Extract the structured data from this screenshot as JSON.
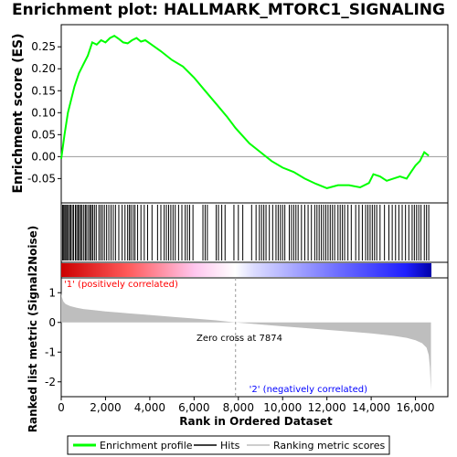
{
  "title": "Enrichment plot: HALLMARK_MTORC1_SIGNALING",
  "colors": {
    "enrichment_line": "#00ff00",
    "hits": "#000000",
    "metric_fill": "#bebebe",
    "positive_label": "#ff0000",
    "negative_label": "#0000ff",
    "zero_cross_line": "#9a9a9a"
  },
  "legend": {
    "enrichment": "Enrichment profile",
    "hits": "Hits",
    "ranking": "Ranking metric scores"
  },
  "chart_data": [
    {
      "type": "line",
      "name": "enrichment-profile",
      "ylabel": "Enrichment score (ES)",
      "xlim": [
        0,
        17500
      ],
      "ylim": [
        -0.095,
        0.29
      ],
      "yticks": [
        "0.25",
        "0.20",
        "0.15",
        "0.10",
        "0.05",
        "0.00",
        "-0.05"
      ],
      "grid": false,
      "x": [
        0,
        150,
        300,
        450,
        600,
        800,
        1000,
        1200,
        1400,
        1600,
        1800,
        2000,
        2200,
        2400,
        2600,
        2800,
        3000,
        3200,
        3400,
        3600,
        3800,
        4000,
        4500,
        5000,
        5500,
        6000,
        6500,
        7000,
        7500,
        7874,
        8500,
        9000,
        9500,
        10000,
        10500,
        11000,
        11500,
        12000,
        12500,
        13000,
        13500,
        13900,
        14100,
        14400,
        14700,
        15000,
        15300,
        15600,
        15800,
        16000,
        16200,
        16400,
        16600
      ],
      "y": [
        -0.005,
        0.05,
        0.1,
        0.13,
        0.16,
        0.19,
        0.21,
        0.23,
        0.26,
        0.255,
        0.265,
        0.26,
        0.27,
        0.275,
        0.268,
        0.26,
        0.258,
        0.265,
        0.27,
        0.262,
        0.265,
        0.258,
        0.24,
        0.22,
        0.205,
        0.18,
        0.15,
        0.12,
        0.09,
        0.065,
        0.03,
        0.01,
        -0.01,
        -0.025,
        -0.035,
        -0.05,
        -0.062,
        -0.072,
        -0.065,
        -0.065,
        -0.07,
        -0.06,
        -0.04,
        -0.045,
        -0.055,
        -0.05,
        -0.045,
        -0.05,
        -0.035,
        -0.02,
        -0.01,
        0.01,
        0.002
      ]
    },
    {
      "type": "rug",
      "name": "hits",
      "xlim": [
        0,
        17500
      ],
      "hits": [
        60,
        110,
        160,
        210,
        260,
        320,
        380,
        430,
        500,
        560,
        640,
        700,
        760,
        820,
        880,
        940,
        1020,
        1090,
        1150,
        1230,
        1300,
        1360,
        1420,
        1500,
        1580,
        1700,
        1780,
        1860,
        1950,
        2050,
        2150,
        2250,
        2350,
        2450,
        2600,
        2750,
        2880,
        3000,
        3080,
        3150,
        3250,
        3330,
        3450,
        3600,
        3750,
        3900,
        4100,
        4350,
        4500,
        4650,
        4750,
        4850,
        4950,
        5050,
        5150,
        5300,
        5450,
        5600,
        5700,
        5800,
        5950,
        6400,
        6500,
        6600,
        7000,
        7100,
        7250,
        7400,
        7800,
        8000,
        8200,
        8600,
        8800,
        8950,
        9050,
        9150,
        9250,
        9400,
        9550,
        9700,
        9800,
        9900,
        10000,
        10100,
        10300,
        10400,
        10500,
        10600,
        10700,
        10850,
        11000,
        11150,
        11300,
        11450,
        11550,
        11650,
        11750,
        11850,
        11950,
        12050,
        12150,
        12250,
        12350,
        12500,
        12600,
        12700,
        12800,
        12950,
        13100,
        13300,
        13450,
        13600,
        13750,
        13850,
        13950,
        14050,
        14150,
        14250,
        14400,
        14600,
        14800,
        14950,
        15100,
        15250,
        15400,
        15550,
        15700,
        15850,
        15950,
        16050,
        16150,
        16250,
        16400,
        16500,
        16600
      ]
    },
    {
      "type": "area",
      "name": "ranking-metric",
      "xlabel": "Rank in Ordered Dataset",
      "ylabel": "Ranked list metric (Signal2Noise)",
      "xlim": [
        0,
        17500
      ],
      "ylim": [
        -2.5,
        1.5
      ],
      "yticks": [
        "1",
        "0",
        "-1",
        "-2"
      ],
      "xticks": [
        "0",
        "2,000",
        "4,000",
        "6,000",
        "8,000",
        "10,000",
        "12,000",
        "14,000",
        "16,000"
      ],
      "x": [
        0,
        30,
        100,
        200,
        400,
        700,
        1000,
        1500,
        2000,
        3000,
        4000,
        5000,
        6000,
        7000,
        7874,
        9000,
        10000,
        11000,
        12000,
        13000,
        14000,
        15000,
        15600,
        16000,
        16300,
        16500,
        16600,
        16650,
        16700
      ],
      "y": [
        1.0,
        0.85,
        0.7,
        0.62,
        0.55,
        0.49,
        0.45,
        0.41,
        0.37,
        0.31,
        0.25,
        0.19,
        0.13,
        0.07,
        0.0,
        -0.07,
        -0.13,
        -0.19,
        -0.25,
        -0.31,
        -0.37,
        -0.45,
        -0.52,
        -0.6,
        -0.7,
        -0.85,
        -1.1,
        -1.5,
        -2.3
      ],
      "annotations": {
        "zero_cross": "Zero cross at 7874",
        "zero_cross_x": 7874,
        "positive": "'1' (positively correlated)",
        "negative": "'2' (negatively correlated)"
      }
    }
  ]
}
